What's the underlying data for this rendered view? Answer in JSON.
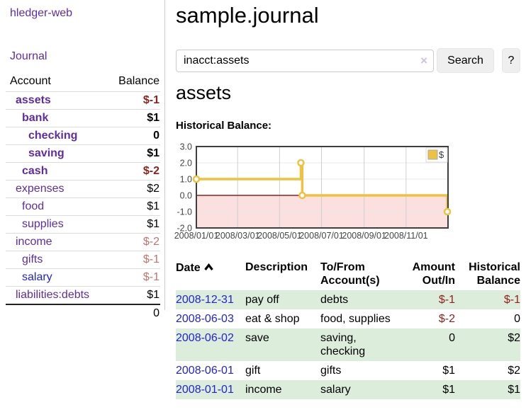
{
  "app": {
    "brand": "hledger-web",
    "nav_journal": "Journal"
  },
  "sidebar": {
    "columns": {
      "account": "Account",
      "balance": "Balance"
    },
    "accounts": [
      {
        "name": "assets",
        "balance": "$-1",
        "depth": 0
      },
      {
        "name": "bank",
        "balance": "$1",
        "depth": 1
      },
      {
        "name": "checking",
        "balance": "0",
        "depth": 2
      },
      {
        "name": "saving",
        "balance": "$1",
        "depth": 2
      },
      {
        "name": "cash",
        "balance": "$-2",
        "depth": 1
      },
      {
        "name": "expenses",
        "balance": "$2",
        "depth": 0
      },
      {
        "name": "food",
        "balance": "$1",
        "depth": 1
      },
      {
        "name": "supplies",
        "balance": "$1",
        "depth": 1
      },
      {
        "name": "income",
        "balance": "$-2",
        "depth": 0
      },
      {
        "name": "gifts",
        "balance": "$-1",
        "depth": 1
      },
      {
        "name": "salary",
        "balance": "$-1",
        "depth": 1
      },
      {
        "name": "liabilities:debts",
        "balance": "$1",
        "depth": 0
      }
    ],
    "total": "0"
  },
  "header": {
    "title": "sample.journal"
  },
  "search": {
    "query": "inacct:assets",
    "clear_icon": "×",
    "button": "Search",
    "help_button": "?"
  },
  "account_page": {
    "heading": "assets",
    "chart_label": "Historical Balance:"
  },
  "chart_data": {
    "type": "line",
    "title": "Historical Balance",
    "style": "step-after",
    "series": [
      {
        "name": "$",
        "color": "#edc240",
        "points": [
          {
            "date": "2008-01-01",
            "day": 0,
            "value": 1
          },
          {
            "date": "2008-06-01",
            "day": 152,
            "value": 2
          },
          {
            "date": "2008-06-03",
            "day": 154,
            "value": 0
          },
          {
            "date": "2008-12-31",
            "day": 365,
            "value": -1
          }
        ]
      }
    ],
    "x_domain_days": 366,
    "xticks": [
      {
        "label": "2008/01/01",
        "day": 0
      },
      {
        "label": "2008/03/01",
        "day": 60
      },
      {
        "label": "2008/05/01",
        "day": 121
      },
      {
        "label": "2008/07/01",
        "day": 182
      },
      {
        "label": "2008/09/01",
        "day": 244
      },
      {
        "label": "2008/11/01",
        "day": 305
      }
    ],
    "yticks": [
      3.0,
      2.0,
      1.0,
      0.0,
      -1.0,
      -2.0
    ],
    "ylim": [
      -2,
      3
    ],
    "legend": {
      "label": "$",
      "position": "top-right"
    },
    "colors": {
      "negative_region": "#fcdfdf",
      "zero_line": "#941f1f",
      "grid_h": "#e8e8e8",
      "grid_v": "#cfcfcf",
      "border": "#3f3f3f",
      "axis_label": "#454545",
      "marker_fill": "#ffffff"
    }
  },
  "register": {
    "sort_column": "Date",
    "sort_direction": "ascending",
    "columns": [
      "Date",
      "Description",
      "To/From Account(s)",
      "Amount Out/In",
      "Historical Balance"
    ],
    "rows": [
      {
        "date": "2008-12-31",
        "description": "pay off",
        "accounts": "debts",
        "amount": "$-1",
        "balance": "$-1"
      },
      {
        "date": "2008-06-03",
        "description": "eat & shop",
        "accounts": "food, supplies",
        "amount": "$-2",
        "balance": "0"
      },
      {
        "date": "2008-06-02",
        "description": "save",
        "accounts": "saving, checking",
        "amount": "0",
        "balance": "$2"
      },
      {
        "date": "2008-06-01",
        "description": "gift",
        "accounts": "gifts",
        "amount": "$1",
        "balance": "$2"
      },
      {
        "date": "2008-01-01",
        "description": "income",
        "accounts": "salary",
        "amount": "$1",
        "balance": "$1"
      }
    ]
  },
  "colors": {
    "visited_link_purple": "#5e2ca5",
    "link_blue": "#2323d6",
    "negative_strong": "#941f1f",
    "negative_soft": "#c4736d",
    "row_stripe_green": "#dceddc",
    "series_gold": "#edc240"
  }
}
